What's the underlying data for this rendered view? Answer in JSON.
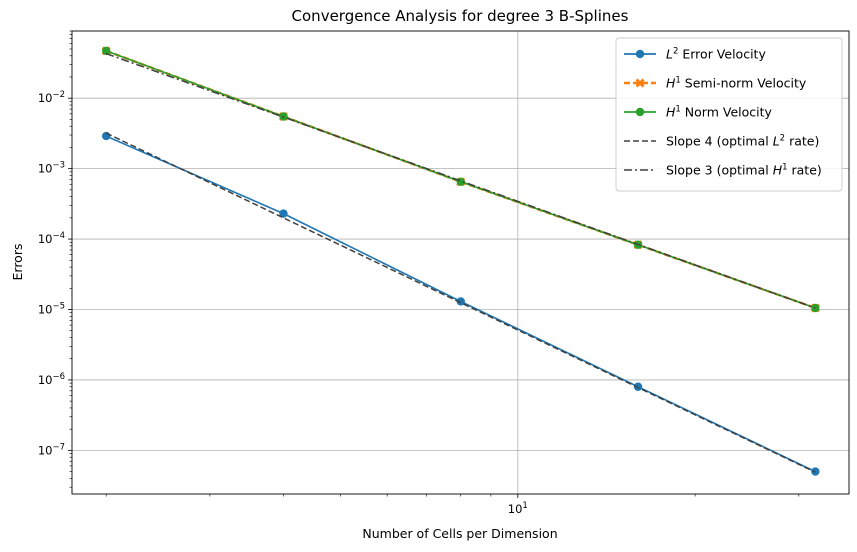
{
  "chart_data": {
    "type": "line",
    "title": "Convergence Analysis for degree 3 B-Splines",
    "xlabel": "Number of Cells per Dimension",
    "ylabel": "Errors",
    "xscale": "log",
    "yscale": "log",
    "xlim": [
      1.75,
      36.5
    ],
    "ylim": [
      2.4e-08,
      0.09
    ],
    "grid": true,
    "legend_position": "top-right",
    "x": [
      2,
      4,
      8,
      16,
      32
    ],
    "x_ticks": [
      {
        "value": 10,
        "base": "10",
        "exp": "1"
      }
    ],
    "y_ticks": [
      {
        "value": 1e-07,
        "base": "10",
        "exp": "−7"
      },
      {
        "value": 1e-06,
        "base": "10",
        "exp": "−6"
      },
      {
        "value": 1e-05,
        "base": "10",
        "exp": "−5"
      },
      {
        "value": 0.0001,
        "base": "10",
        "exp": "−4"
      },
      {
        "value": 0.001,
        "base": "10",
        "exp": "−3"
      },
      {
        "value": 0.01,
        "base": "10",
        "exp": "−2"
      }
    ],
    "series": [
      {
        "name_parts": [
          "L",
          "2",
          " Error Velocity"
        ],
        "color": "#1f77b4",
        "marker": "circle",
        "linestyle": "solid",
        "values": [
          0.0029,
          0.00023,
          1.3e-05,
          8e-07,
          5e-08
        ]
      },
      {
        "name_parts": [
          "H",
          "1",
          " Semi-norm Velocity"
        ],
        "color": "#ff7f0e",
        "marker": "x",
        "linestyle": "dashed",
        "values": [
          0.047,
          0.0055,
          0.00065,
          8.3e-05,
          1.05e-05
        ]
      },
      {
        "name_parts": [
          "H",
          "1",
          " Norm Velocity"
        ],
        "color": "#2ca02c",
        "marker": "circle",
        "linestyle": "solid",
        "values": [
          0.047,
          0.0055,
          0.00065,
          8.3e-05,
          1.05e-05
        ]
      },
      {
        "name_parts": [
          "Slope 4 (optimal ",
          "L",
          "2",
          " rate)"
        ],
        "color": "#404040",
        "marker": "none",
        "linestyle": "dashed",
        "values": [
          0.0032,
          0.0002,
          1.25e-05,
          7.8e-07,
          4.9e-08
        ]
      },
      {
        "name_parts": [
          "Slope 3 (optimal ",
          "H",
          "1",
          " rate)"
        ],
        "color": "#404040",
        "marker": "none",
        "linestyle": "dashdot",
        "values": [
          0.043,
          0.0054,
          0.00067,
          8.4e-05,
          1.05e-05
        ]
      }
    ]
  }
}
